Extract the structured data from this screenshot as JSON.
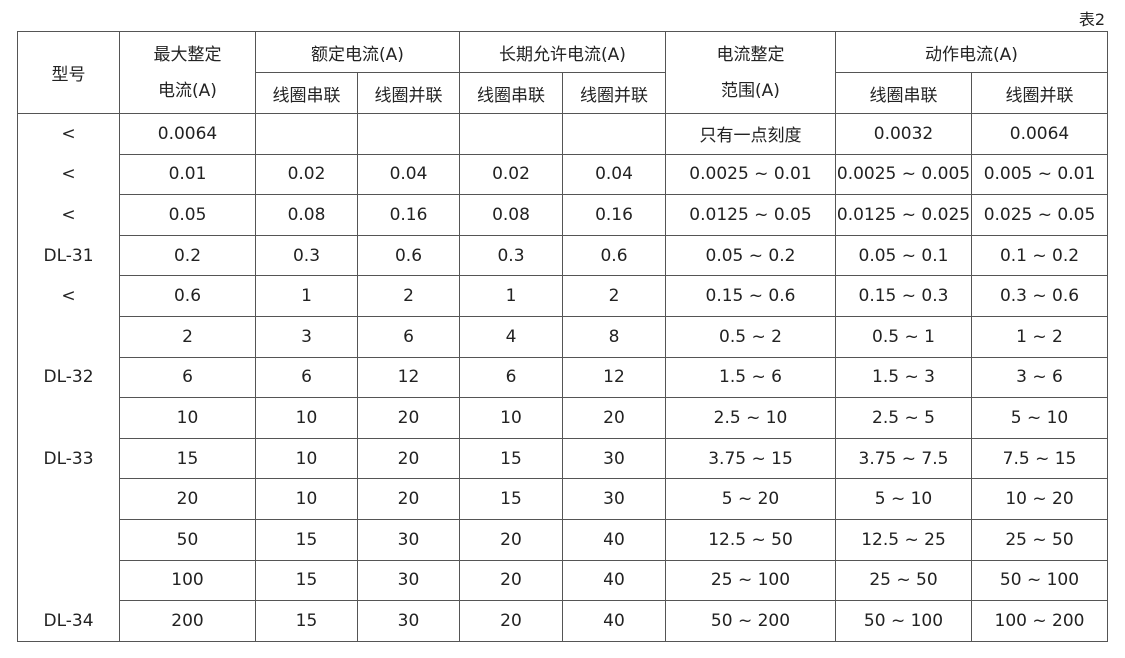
{
  "caption": "表2",
  "headers": {
    "model": "型号",
    "max_setting_1": "最大整定",
    "max_setting_2": "电流(A)",
    "rated": "额定电流(A)",
    "long_term": "长期允许电流(A)",
    "range_1": "电流整定",
    "range_2": "范围(A)",
    "action": "动作电流(A)",
    "series": "线圈串联",
    "parallel": "线圈并联"
  },
  "rows": [
    [
      "<",
      "0.0064",
      "",
      "",
      "",
      "",
      "只有一点刻度",
      "0.0032",
      "0.0064"
    ],
    [
      "<",
      "0.01",
      "0.02",
      "0.04",
      "0.02",
      "0.04",
      "0.0025 ~ 0.01",
      "0.0025 ~ 0.005",
      "0.005 ~ 0.01"
    ],
    [
      "<",
      "0.05",
      "0.08",
      "0.16",
      "0.08",
      "0.16",
      "0.0125 ~ 0.05",
      "0.0125 ~ 0.025",
      "0.025 ~ 0.05"
    ],
    [
      "DL-31",
      "0.2",
      "0.3",
      "0.6",
      "0.3",
      "0.6",
      "0.05 ~ 0.2",
      "0.05 ~ 0.1",
      "0.1 ~ 0.2"
    ],
    [
      "<",
      "0.6",
      "1",
      "2",
      "1",
      "2",
      "0.15 ~ 0.6",
      "0.15 ~ 0.3",
      "0.3 ~ 0.6"
    ],
    [
      "",
      "2",
      "3",
      "6",
      "4",
      "8",
      "0.5 ~ 2",
      "0.5 ~ 1",
      "1 ~ 2"
    ],
    [
      "DL-32",
      "6",
      "6",
      "12",
      "6",
      "12",
      "1.5 ~ 6",
      "1.5 ~ 3",
      "3 ~ 6"
    ],
    [
      "",
      "10",
      "10",
      "20",
      "10",
      "20",
      "2.5 ~ 10",
      "2.5 ~ 5",
      "5 ~ 10"
    ],
    [
      "DL-33",
      "15",
      "10",
      "20",
      "15",
      "30",
      "3.75 ~ 15",
      "3.75 ~ 7.5",
      "7.5 ~ 15"
    ],
    [
      "",
      "20",
      "10",
      "20",
      "15",
      "30",
      "5 ~ 20",
      "5 ~ 10",
      "10 ~ 20"
    ],
    [
      "",
      "50",
      "15",
      "30",
      "20",
      "40",
      "12.5 ~ 50",
      "12.5 ~ 25",
      "25 ~ 50"
    ],
    [
      "",
      "100",
      "15",
      "30",
      "20",
      "40",
      "25 ~ 100",
      "25 ~ 50",
      "50 ~ 100"
    ],
    [
      "DL-34",
      "200",
      "15",
      "30",
      "20",
      "40",
      "50 ~ 200",
      "50 ~ 100",
      "100 ~ 200"
    ]
  ]
}
